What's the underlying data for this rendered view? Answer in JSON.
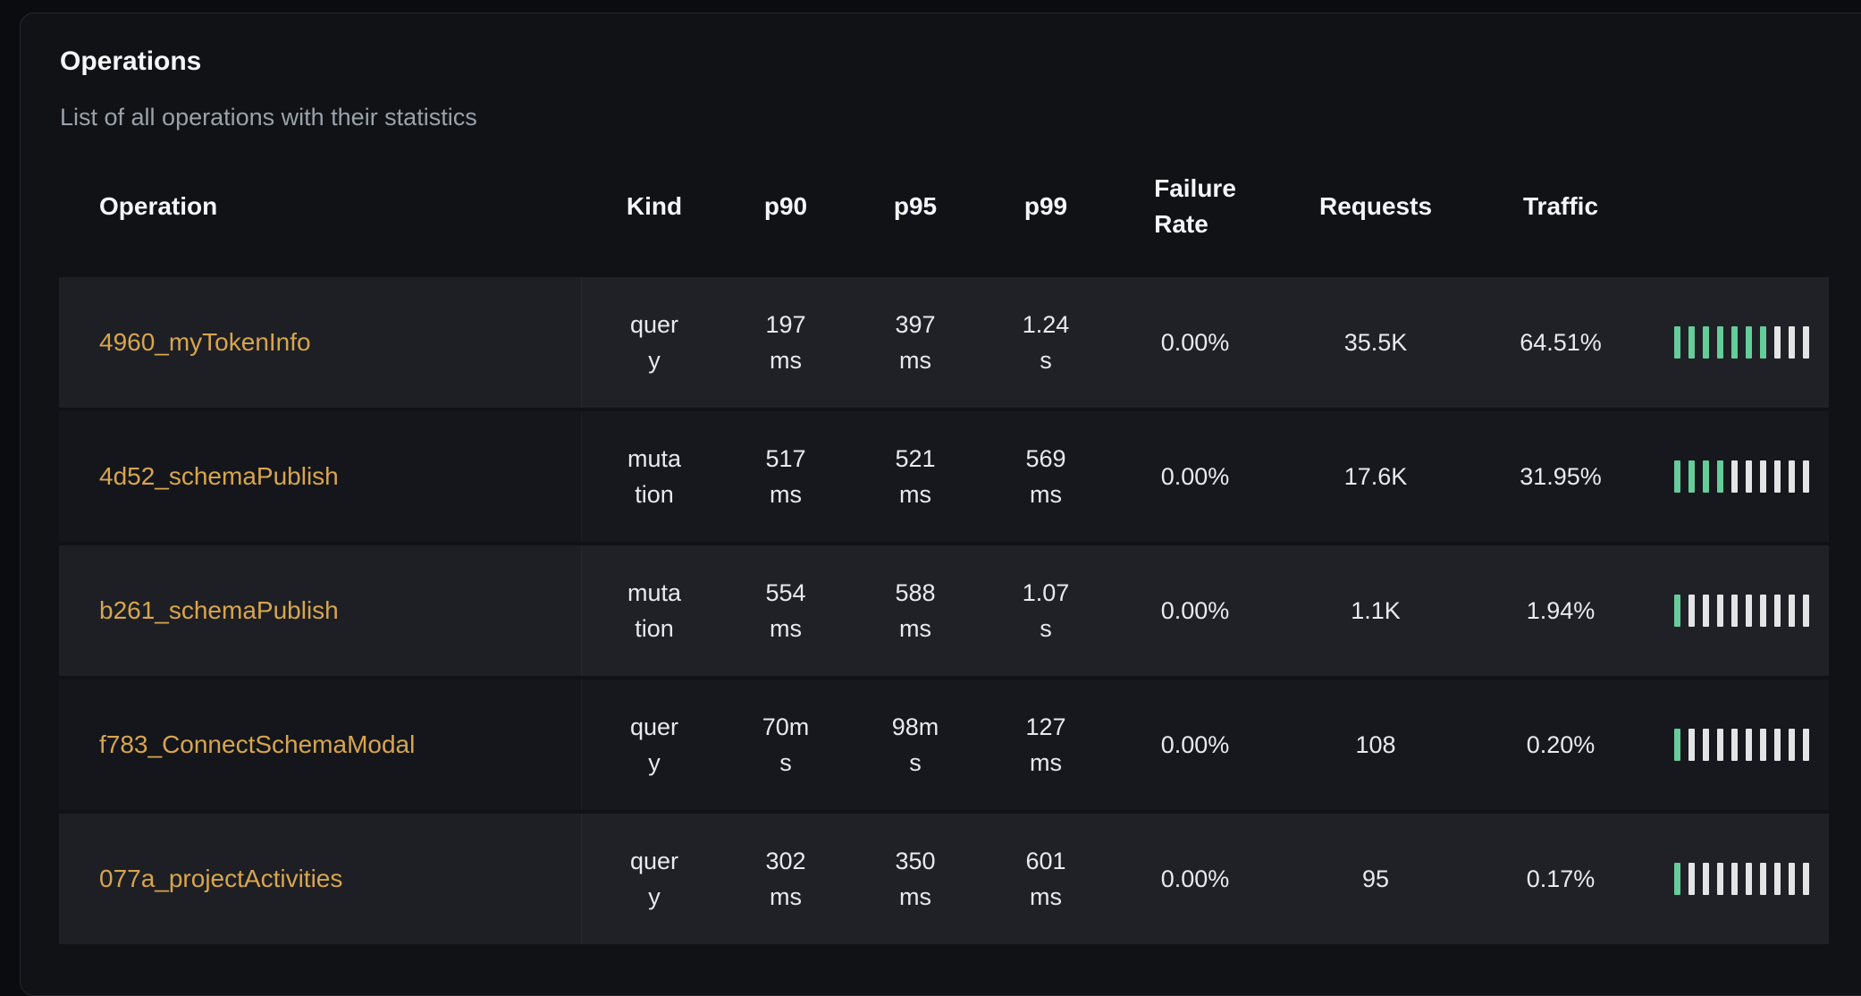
{
  "panel": {
    "title": "Operations",
    "subtitle": "List of all operations with their statistics"
  },
  "table": {
    "columns": [
      {
        "key": "operation",
        "label": "Operation"
      },
      {
        "key": "kind",
        "label": "Kind"
      },
      {
        "key": "p90",
        "label": "p90"
      },
      {
        "key": "p95",
        "label": "p95"
      },
      {
        "key": "p99",
        "label": "p99"
      },
      {
        "key": "failure_rate",
        "label": "Failure Rate"
      },
      {
        "key": "requests",
        "label": "Requests"
      },
      {
        "key": "traffic",
        "label": "Traffic"
      },
      {
        "key": "traffic_bar",
        "label": ""
      }
    ],
    "rows": [
      {
        "operation": "4960_myTokenInfo",
        "kind": "query",
        "p90": "197 ms",
        "p95": "397 ms",
        "p99": "1.24 s",
        "failure_rate": "0.00%",
        "requests": "35.5K",
        "traffic": "64.51%",
        "bar_total": 10,
        "bar_filled": 7
      },
      {
        "operation": "4d52_schemaPublish",
        "kind": "mutation",
        "p90": "517 ms",
        "p95": "521 ms",
        "p99": "569 ms",
        "failure_rate": "0.00%",
        "requests": "17.6K",
        "traffic": "31.95%",
        "bar_total": 10,
        "bar_filled": 4
      },
      {
        "operation": "b261_schemaPublish",
        "kind": "mutation",
        "p90": "554 ms",
        "p95": "588 ms",
        "p99": "1.07 s",
        "failure_rate": "0.00%",
        "requests": "1.1K",
        "traffic": "1.94%",
        "bar_total": 10,
        "bar_filled": 1
      },
      {
        "operation": "f783_ConnectSchemaModal",
        "kind": "query",
        "p90": "70ms",
        "p95": "98ms",
        "p99": "127 ms",
        "failure_rate": "0.00%",
        "requests": "108",
        "traffic": "0.20%",
        "bar_total": 10,
        "bar_filled": 1
      },
      {
        "operation": "077a_projectActivities",
        "kind": "query",
        "p90": "302 ms",
        "p95": "350 ms",
        "p99": "601 ms",
        "failure_rate": "0.00%",
        "requests": "95",
        "traffic": "0.17%",
        "bar_total": 10,
        "bar_filled": 1
      }
    ]
  },
  "colors": {
    "accent_link": "#d8a54f",
    "bar_filled": "#64cd9a",
    "bar_empty": "#e2e4e6"
  }
}
